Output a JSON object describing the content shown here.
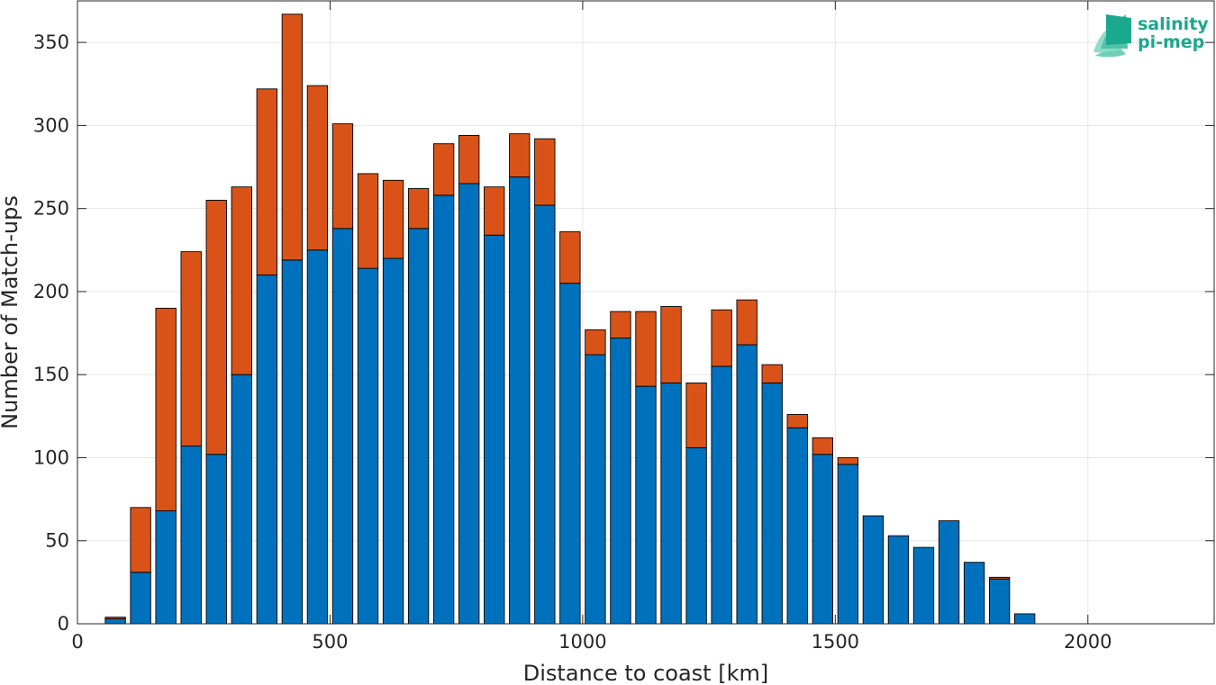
{
  "chart_data": {
    "type": "bar",
    "stacked": true,
    "xlabel": "Distance to coast [km]",
    "ylabel": "Number of Match-ups",
    "xlim": [
      0,
      2250
    ],
    "ylim": [
      0,
      375
    ],
    "grid": true,
    "x_ticks": [
      0,
      500,
      1000,
      1500,
      2000
    ],
    "y_ticks": [
      0,
      50,
      100,
      150,
      200,
      250,
      300,
      350
    ],
    "bin_width": 50,
    "x": [
      75,
      125,
      175,
      225,
      275,
      325,
      375,
      425,
      475,
      525,
      575,
      625,
      675,
      725,
      775,
      825,
      875,
      925,
      975,
      1025,
      1075,
      1125,
      1175,
      1225,
      1275,
      1325,
      1375,
      1425,
      1475,
      1525,
      1575,
      1625,
      1675,
      1725,
      1775,
      1825,
      1875
    ],
    "series": [
      {
        "color": "#0072bd",
        "values": [
          3,
          31,
          68,
          107,
          102,
          150,
          210,
          219,
          225,
          238,
          214,
          220,
          238,
          258,
          265,
          234,
          269,
          252,
          205,
          162,
          172,
          143,
          145,
          106,
          155,
          168,
          145,
          118,
          102,
          96,
          65,
          53,
          46,
          62,
          37,
          27,
          6
        ]
      },
      {
        "color": "#d95319",
        "values": [
          1,
          39,
          122,
          117,
          153,
          113,
          112,
          148,
          99,
          63,
          57,
          47,
          24,
          31,
          29,
          29,
          26,
          40,
          31,
          15,
          16,
          45,
          46,
          39,
          34,
          27,
          11,
          8,
          10,
          4,
          0,
          0,
          0,
          0,
          0,
          1,
          0
        ]
      }
    ]
  },
  "logo": {
    "line1": "salinity",
    "line2": "pi-mep"
  }
}
